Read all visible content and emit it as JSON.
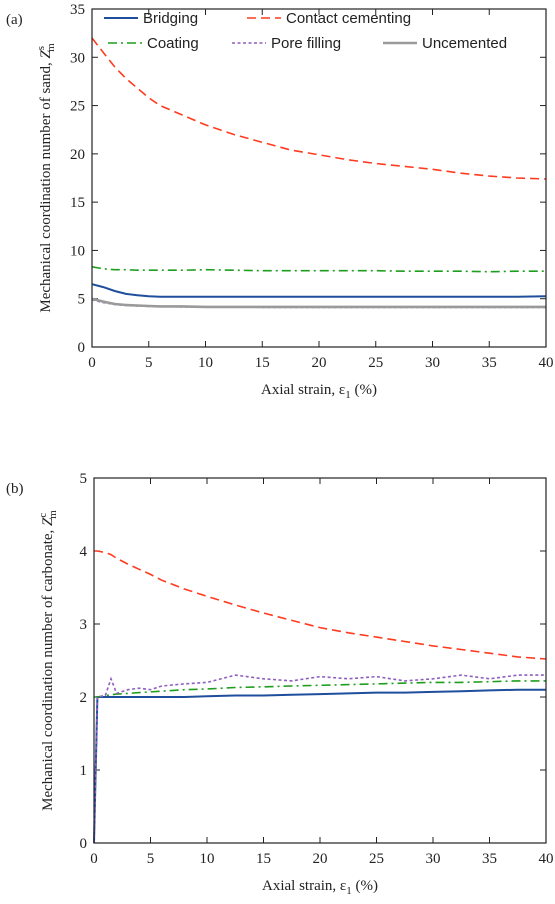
{
  "chart_data": [
    {
      "type": "line",
      "panel_label": "(a)",
      "xlabel": [
        "Axial strain, ε",
        "1",
        " (%)"
      ],
      "ylabel": [
        "Mechanical coordination number of sand, ",
        "Z",
        "s",
        "m"
      ],
      "x": [
        0,
        1,
        2,
        3,
        4,
        5,
        6,
        8,
        10,
        12.5,
        15,
        17.5,
        20,
        22.5,
        25,
        27.5,
        30,
        32.5,
        35,
        37.5,
        40
      ],
      "xlim": [
        0,
        40
      ],
      "xticks": [
        0,
        5,
        10,
        15,
        20,
        25,
        30,
        35,
        40
      ],
      "ylim": [
        0,
        35
      ],
      "yticks": [
        0,
        5,
        10,
        15,
        20,
        25,
        30,
        35
      ],
      "legend": true,
      "series": [
        {
          "name": "Bridging",
          "color": "#1f4e9c",
          "linestyle": "solid",
          "values": [
            6.5,
            6.2,
            5.8,
            5.5,
            5.35,
            5.25,
            5.2,
            5.2,
            5.2,
            5.2,
            5.2,
            5.2,
            5.2,
            5.2,
            5.2,
            5.2,
            5.2,
            5.2,
            5.2,
            5.2,
            5.25
          ]
        },
        {
          "name": "Contact cementing",
          "color": "#ff3b1f",
          "linestyle": "dashed",
          "values": [
            32,
            30.5,
            29,
            27.8,
            26.8,
            25.8,
            25,
            24,
            23,
            22,
            21.2,
            20.4,
            19.9,
            19.4,
            19,
            18.7,
            18.4,
            18,
            17.7,
            17.5,
            17.4
          ]
        },
        {
          "name": "Coating",
          "color": "#1e9e1e",
          "linestyle": "dashdot",
          "values": [
            8.3,
            8.1,
            8,
            8,
            7.95,
            7.95,
            7.95,
            7.95,
            8,
            7.95,
            7.9,
            7.9,
            7.9,
            7.9,
            7.9,
            7.85,
            7.85,
            7.85,
            7.8,
            7.85,
            7.85
          ]
        },
        {
          "name": "Pore filling",
          "color": "#8e5fbf",
          "linestyle": "dotted",
          "values": [
            4.9,
            4.6,
            4.4,
            4.3,
            4.25,
            4.2,
            4.2,
            4.15,
            4.15,
            4.15,
            4.1,
            4.1,
            4.1,
            4.1,
            4.1,
            4.1,
            4.1,
            4.1,
            4.1,
            4.1,
            4.1
          ]
        },
        {
          "name": "Uncemented",
          "color": "#9a9a9a",
          "linestyle": "thick",
          "values": [
            5,
            4.7,
            4.45,
            4.35,
            4.3,
            4.25,
            4.2,
            4.2,
            4.15,
            4.15,
            4.15,
            4.15,
            4.15,
            4.15,
            4.15,
            4.15,
            4.15,
            4.15,
            4.15,
            4.15,
            4.15
          ]
        }
      ]
    },
    {
      "type": "line",
      "panel_label": "(b)",
      "xlabel": [
        "Axial strain, ε",
        "1",
        " (%)"
      ],
      "ylabel": [
        "Mechanical coordination number of carbonate, ",
        "Z",
        "c",
        "m"
      ],
      "x": [
        0,
        0.3,
        1,
        1.5,
        2,
        3,
        4,
        5,
        6,
        8,
        10,
        12.5,
        15,
        17.5,
        20,
        22.5,
        25,
        27.5,
        30,
        32.5,
        35,
        37.5,
        40
      ],
      "xlim": [
        0,
        40
      ],
      "xticks": [
        0,
        5,
        10,
        15,
        20,
        25,
        30,
        35,
        40
      ],
      "ylim": [
        0,
        5
      ],
      "yticks": [
        0,
        1,
        2,
        3,
        4,
        5
      ],
      "legend": false,
      "series": [
        {
          "name": "Bridging",
          "color": "#1f4e9c",
          "linestyle": "solid",
          "values": [
            0,
            2,
            2,
            2,
            2,
            2,
            2,
            2,
            2,
            2,
            2.01,
            2.02,
            2.02,
            2.03,
            2.04,
            2.05,
            2.06,
            2.06,
            2.07,
            2.08,
            2.09,
            2.1,
            2.1
          ]
        },
        {
          "name": "Contact cementing",
          "color": "#ff3b1f",
          "linestyle": "dashed",
          "values": [
            4,
            4,
            3.98,
            3.95,
            3.9,
            3.82,
            3.75,
            3.68,
            3.6,
            3.48,
            3.38,
            3.26,
            3.15,
            3.05,
            2.95,
            2.88,
            2.82,
            2.76,
            2.7,
            2.65,
            2.6,
            2.55,
            2.52
          ]
        },
        {
          "name": "Coating",
          "color": "#1e9e1e",
          "linestyle": "dashdot",
          "values": [
            2,
            2,
            2.02,
            2.03,
            2.04,
            2.05,
            2.06,
            2.07,
            2.08,
            2.1,
            2.11,
            2.13,
            2.14,
            2.15,
            2.16,
            2.17,
            2.18,
            2.19,
            2.2,
            2.2,
            2.21,
            2.22,
            2.22
          ]
        },
        {
          "name": "Pore filling",
          "color": "#8e5fbf",
          "linestyle": "dotted",
          "values": [
            0,
            2,
            2.02,
            2.25,
            2.05,
            2.1,
            2.12,
            2.1,
            2.15,
            2.18,
            2.2,
            2.3,
            2.25,
            2.22,
            2.28,
            2.25,
            2.28,
            2.22,
            2.25,
            2.3,
            2.25,
            2.3,
            2.3
          ]
        }
      ]
    }
  ]
}
